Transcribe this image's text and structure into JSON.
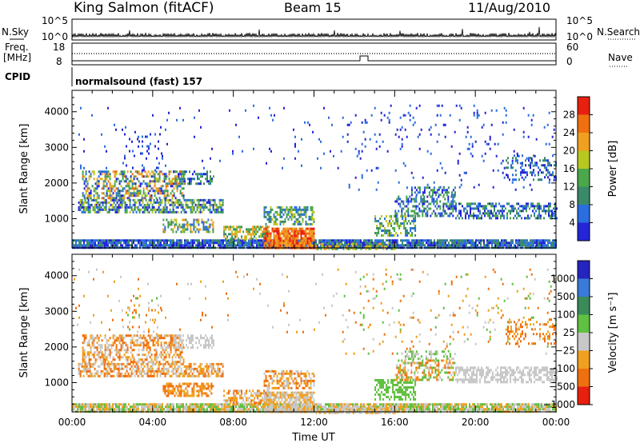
{
  "header": {
    "station": "King Salmon (fitACF)",
    "beam": "Beam 15",
    "date": "11/Aug/2010"
  },
  "noise_panel": {
    "left_label": "N.Sky",
    "right_label": "N.Search",
    "left_ticks": [
      "10^5",
      "10^0"
    ],
    "right_ticks": [
      "10^5",
      "10^0"
    ]
  },
  "freq_panel": {
    "left_label_1": "Freq.",
    "left_label_2": "[MHz]",
    "left_ticks": [
      "18",
      "8"
    ],
    "right_label": "Nave",
    "right_ticks": [
      "60",
      "0"
    ]
  },
  "cpid_panel": {
    "label": "CPID",
    "text": "normalsound (fast) 157"
  },
  "colors": {
    "power": [
      "#2424d8",
      "#2a6ee0",
      "#3a8a6a",
      "#4aa84a",
      "#b8c820",
      "#f0a020",
      "#f07010",
      "#e82010"
    ],
    "velocity": [
      "#2424c0",
      "#3a7ad8",
      "#3a8a5a",
      "#60c040",
      "#c8c8c8",
      "#f0a020",
      "#f07010",
      "#e82010"
    ]
  },
  "chart_data": [
    {
      "type": "heatmap",
      "name": "power",
      "ylabel": "Slant Range [km]",
      "xlabel": "",
      "ylim": [
        180,
        4600
      ],
      "xlim": [
        0,
        24
      ],
      "yticks": [
        "1000",
        "2000",
        "3000",
        "4000"
      ],
      "colorbar": {
        "label": "Power [dB]",
        "ticks": [
          "4",
          "8",
          "12",
          "16",
          "20",
          "24",
          "28"
        ],
        "range": [
          0,
          32
        ]
      }
    },
    {
      "type": "heatmap",
      "name": "velocity",
      "ylabel": "Slant Range [km]",
      "xlabel": "Time UT",
      "ylim": [
        180,
        4600
      ],
      "xlim": [
        0,
        24
      ],
      "xticks": [
        "00:00",
        "04:00",
        "08:00",
        "12:00",
        "16:00",
        "20:00",
        "00:00"
      ],
      "yticks": [
        "1000",
        "2000",
        "3000",
        "4000"
      ],
      "colorbar": {
        "label": "Velocity [m s⁻¹]",
        "ticks": [
          "1000",
          "500",
          "100",
          "25",
          "−25",
          "−100",
          "−500",
          "−1000"
        ]
      }
    }
  ]
}
